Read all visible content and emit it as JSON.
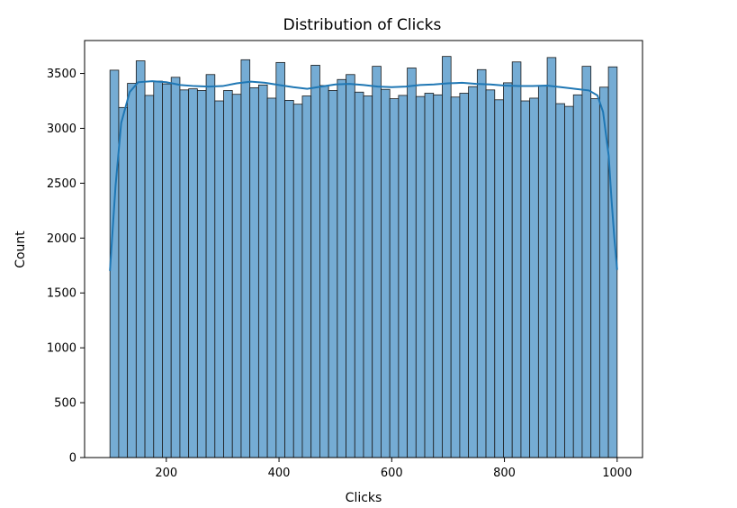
{
  "chart_data": {
    "type": "bar",
    "title": "Distribution of Clicks",
    "xlabel": "Clicks",
    "ylabel": "Count",
    "xlim": [
      55,
      1045
    ],
    "ylim": [
      0,
      3800
    ],
    "xticks": [
      200,
      400,
      600,
      800,
      1000
    ],
    "yticks": [
      0,
      500,
      1000,
      1500,
      2000,
      2500,
      3000,
      3500
    ],
    "bin_range": [
      100,
      1000
    ],
    "bar_color": "#75acd4",
    "edge_color": "#1a1a1a",
    "kde_color": "#1f77b4",
    "grid": false,
    "values": [
      3530,
      3190,
      3410,
      3615,
      3300,
      3430,
      3405,
      3465,
      3350,
      3360,
      3345,
      3490,
      3250,
      3345,
      3310,
      3625,
      3370,
      3395,
      3275,
      3600,
      3255,
      3220,
      3295,
      3575,
      3390,
      3345,
      3445,
      3490,
      3330,
      3295,
      3565,
      3355,
      3270,
      3300,
      3550,
      3290,
      3320,
      3305,
      3655,
      3285,
      3320,
      3380,
      3535,
      3350,
      3260,
      3415,
      3605,
      3250,
      3275,
      3390,
      3645,
      3225,
      3200,
      3305,
      3565,
      3270,
      3375,
      3560
    ],
    "kde": {
      "x": [
        100,
        110,
        120,
        135,
        150,
        175,
        200,
        225,
        250,
        275,
        300,
        325,
        350,
        375,
        400,
        425,
        450,
        475,
        500,
        525,
        550,
        575,
        600,
        625,
        650,
        675,
        700,
        725,
        750,
        775,
        800,
        825,
        850,
        875,
        900,
        925,
        950,
        965,
        975,
        985,
        990,
        995,
        1000
      ],
      "y": [
        1700,
        2480,
        3050,
        3330,
        3420,
        3430,
        3420,
        3395,
        3385,
        3380,
        3385,
        3410,
        3425,
        3415,
        3395,
        3375,
        3360,
        3380,
        3400,
        3405,
        3395,
        3380,
        3375,
        3380,
        3395,
        3400,
        3410,
        3415,
        3405,
        3400,
        3390,
        3385,
        3385,
        3390,
        3375,
        3360,
        3345,
        3300,
        3150,
        2750,
        2350,
        2000,
        1710
      ]
    }
  }
}
